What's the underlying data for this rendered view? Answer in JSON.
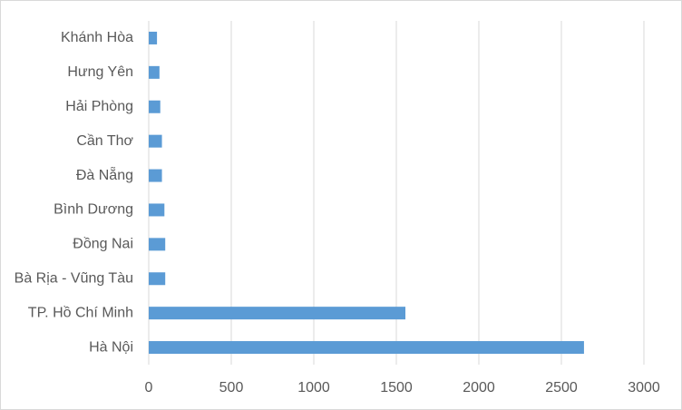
{
  "chart_data": {
    "type": "bar",
    "orientation": "horizontal",
    "categories": [
      "Khánh Hòa",
      "Hưng Yên",
      "Hải Phòng",
      "Cần Thơ",
      "Đà Nẵng",
      "Bình Dương",
      "Đồng Nai",
      "Bà Rịa - Vũng Tàu",
      "TP. Hồ Chí Minh",
      "Hà Nội"
    ],
    "values": [
      50,
      65,
      70,
      80,
      80,
      95,
      100,
      100,
      1555,
      2637
    ],
    "color": "#5b9bd5",
    "xlim": [
      0,
      3000
    ],
    "xticks": [
      0,
      500,
      1000,
      1500,
      2000,
      2500,
      3000
    ],
    "grid": true
  }
}
